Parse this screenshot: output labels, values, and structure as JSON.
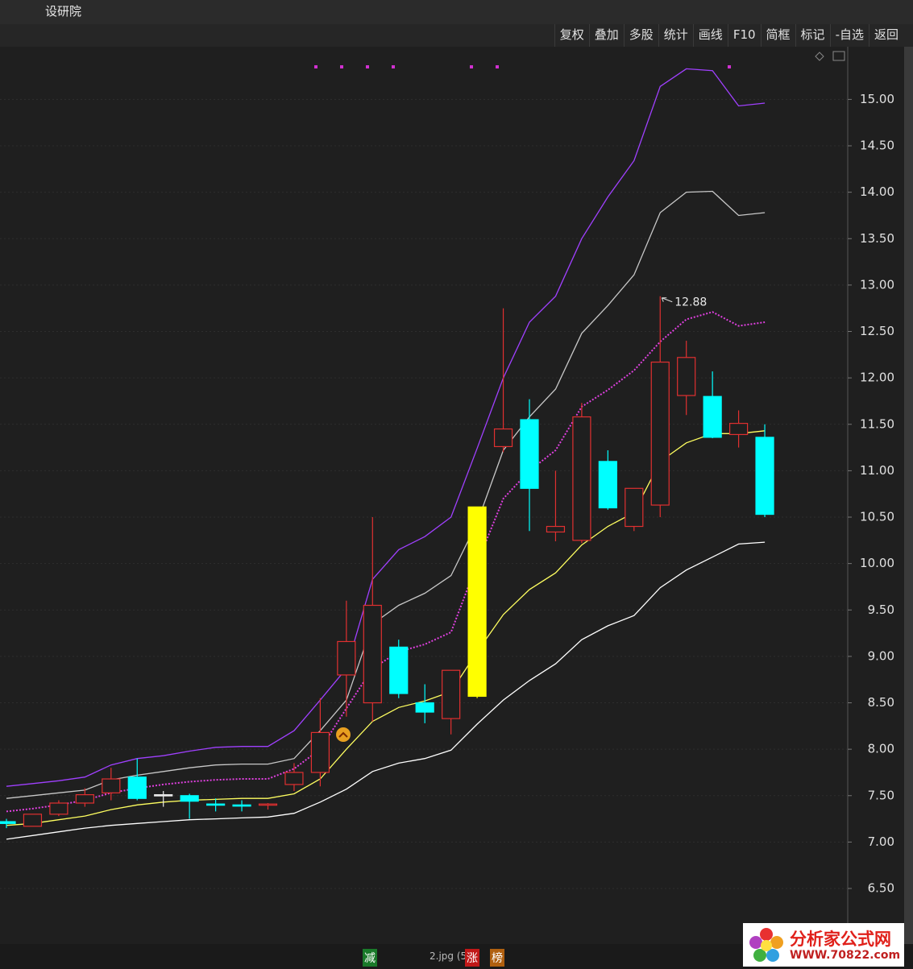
{
  "ui": {
    "title": "设研院",
    "toolbar": [
      "复权",
      "叠加",
      "多股",
      "统计",
      "画线",
      "F10",
      "简框",
      "标记",
      "-自选",
      "返回"
    ],
    "tags": [
      "减",
      "涨",
      "榜"
    ],
    "file": "2.jpg (5/",
    "logo": {
      "name": "分析家公式网",
      "url": "WWW.70822.com"
    }
  },
  "chart_data": {
    "type": "candlestick",
    "candles": {
      "open": [
        7.22,
        7.17,
        7.3,
        7.42,
        7.53,
        7.7,
        7.51,
        7.5,
        7.41,
        7.4,
        7.4,
        7.62,
        7.75,
        8.8,
        8.5,
        9.1,
        8.5,
        8.33,
        8.57,
        11.26,
        11.55,
        10.34,
        10.25,
        11.1,
        10.4,
        10.63,
        11.81,
        11.8,
        11.39,
        11.36
      ],
      "high": [
        7.25,
        7.3,
        7.45,
        7.58,
        7.8,
        7.9,
        7.55,
        7.52,
        7.47,
        7.45,
        7.42,
        7.85,
        8.55,
        9.6,
        10.5,
        9.18,
        8.7,
        8.85,
        10.61,
        12.75,
        11.77,
        11.0,
        11.73,
        11.22,
        10.81,
        12.88,
        12.4,
        12.07,
        11.65,
        11.5
      ],
      "low": [
        7.15,
        7.17,
        7.28,
        7.38,
        7.45,
        7.45,
        7.38,
        7.25,
        7.33,
        7.33,
        7.35,
        7.55,
        7.6,
        8.35,
        8.3,
        8.55,
        8.28,
        8.16,
        8.55,
        11.2,
        10.35,
        10.24,
        10.22,
        10.58,
        10.35,
        10.5,
        11.6,
        11.35,
        11.25,
        10.5
      ],
      "close": [
        7.2,
        7.3,
        7.42,
        7.51,
        7.68,
        7.47,
        7.5,
        7.44,
        7.4,
        7.39,
        7.41,
        7.75,
        8.18,
        9.16,
        9.55,
        8.6,
        8.4,
        8.85,
        10.61,
        11.45,
        10.81,
        10.4,
        11.58,
        10.6,
        10.81,
        12.17,
        12.22,
        11.36,
        11.51,
        10.53
      ],
      "colors": [
        "#00ffff",
        "#e03030",
        "#e03030",
        "#e03030",
        "#e03030",
        "#00ffff",
        "#e8e8e8",
        "#00ffff",
        "#00ffff",
        "#00ffff",
        "#e03030",
        "#e03030",
        "#e03030",
        "#e03030",
        "#e03030",
        "#00ffff",
        "#00ffff",
        "#e03030",
        "#ffff00",
        "#e03030",
        "#00ffff",
        "#e03030",
        "#e03030",
        "#00ffff",
        "#e03030",
        "#e03030",
        "#e03030",
        "#00ffff",
        "#e03030",
        "#00ffff"
      ]
    },
    "lines": [
      {
        "color": "#a040ff",
        "style": "solid",
        "values": [
          7.6,
          7.63,
          7.66,
          7.7,
          7.83,
          7.9,
          7.93,
          7.98,
          8.02,
          8.03,
          8.03,
          8.2,
          8.53,
          8.87,
          9.83,
          10.15,
          10.29,
          10.5,
          11.24,
          12.0,
          12.6,
          12.88,
          13.5,
          13.95,
          14.34,
          15.14,
          15.33,
          15.31,
          14.93,
          14.96
        ]
      },
      {
        "color": "#c8c8c8",
        "style": "solid",
        "values": [
          7.47,
          7.5,
          7.53,
          7.56,
          7.67,
          7.72,
          7.76,
          7.8,
          7.83,
          7.84,
          7.84,
          7.9,
          8.2,
          8.53,
          9.35,
          9.55,
          9.68,
          9.87,
          10.44,
          11.22,
          11.58,
          11.88,
          12.48,
          12.78,
          13.11,
          13.78,
          14.0,
          14.01,
          13.75,
          13.78
        ]
      },
      {
        "color": "#e040e0",
        "style": "dotted",
        "values": [
          7.33,
          7.36,
          7.4,
          7.45,
          7.53,
          7.58,
          7.62,
          7.65,
          7.67,
          7.68,
          7.68,
          7.79,
          8.0,
          8.44,
          8.87,
          9.05,
          9.13,
          9.26,
          10.0,
          10.7,
          11.0,
          11.22,
          11.69,
          11.87,
          12.08,
          12.39,
          12.63,
          12.71,
          12.56,
          12.6
        ]
      },
      {
        "color": "#ffff60",
        "style": "solid",
        "values": [
          7.18,
          7.2,
          7.24,
          7.28,
          7.35,
          7.4,
          7.43,
          7.45,
          7.46,
          7.47,
          7.47,
          7.52,
          7.68,
          8.0,
          8.3,
          8.45,
          8.52,
          8.62,
          9.05,
          9.45,
          9.72,
          9.9,
          10.2,
          10.4,
          10.55,
          11.1,
          11.3,
          11.4,
          11.4,
          11.43
        ]
      },
      {
        "color": "#ffffff",
        "style": "solid",
        "values": [
          7.03,
          7.07,
          7.11,
          7.15,
          7.18,
          7.2,
          7.22,
          7.24,
          7.25,
          7.26,
          7.27,
          7.31,
          7.43,
          7.57,
          7.76,
          7.85,
          7.9,
          7.99,
          8.27,
          8.53,
          8.74,
          8.92,
          9.18,
          9.33,
          9.44,
          9.74,
          9.93,
          10.07,
          10.21,
          10.23
        ]
      }
    ],
    "annotations": [
      {
        "value": 12.88,
        "label": "12.88"
      }
    ],
    "ylim": [
      6.2,
      15.55
    ],
    "yticks": [
      {
        "value": 6.5,
        "label": "6.50"
      },
      {
        "value": 7,
        "label": "7.00"
      },
      {
        "value": 7.5,
        "label": "7.50"
      },
      {
        "value": 8,
        "label": "8.00"
      },
      {
        "value": 8.5,
        "label": "8.50"
      },
      {
        "value": 9,
        "label": "9.00"
      },
      {
        "value": 9.5,
        "label": "9.50"
      },
      {
        "value": 10,
        "label": "10.00"
      },
      {
        "value": 10.5,
        "label": "10.50"
      },
      {
        "value": 11,
        "label": "11.00"
      },
      {
        "value": 11.5,
        "label": "11.50"
      },
      {
        "value": 12,
        "label": "12.00"
      },
      {
        "value": 12.5,
        "label": "12.50"
      },
      {
        "value": 13,
        "label": "13.00"
      },
      {
        "value": 13.5,
        "label": "13.50"
      },
      {
        "value": 14,
        "label": "14.00"
      },
      {
        "value": 14.5,
        "label": "14.50"
      },
      {
        "value": 15,
        "label": "15.00"
      }
    ],
    "grid": true
  }
}
